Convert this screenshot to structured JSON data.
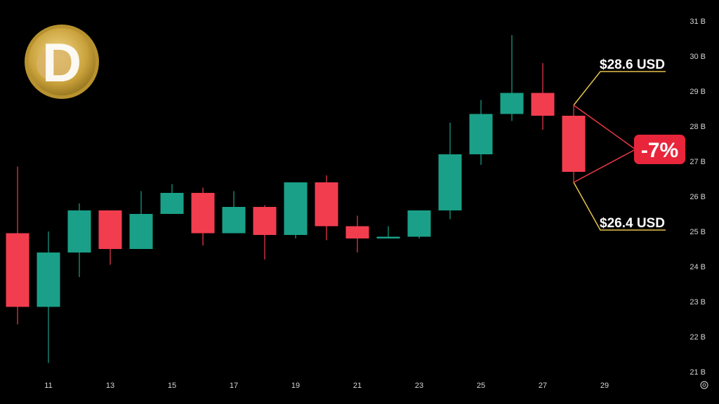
{
  "chart_data": {
    "type": "candlestick",
    "title": "",
    "xlabel": "",
    "ylabel": "",
    "y_unit": "B",
    "ylim": [
      21,
      31
    ],
    "y_ticks": [
      "21 B",
      "22 B",
      "23 B",
      "24 B",
      "25 B",
      "26 B",
      "27 B",
      "28 B",
      "29 B",
      "30 B",
      "31 B"
    ],
    "x_ticks": [
      "11",
      "13",
      "15",
      "17",
      "19",
      "21",
      "23",
      "25",
      "27",
      "29"
    ],
    "grid": false,
    "colors": {
      "up": "#1aa088",
      "down": "#f23d4f",
      "annotation_line": "#e6c34a",
      "annotation_diag": "#ea3943",
      "badge": "#e8253b"
    },
    "candles": [
      {
        "day": 10,
        "open": 24.95,
        "high": 26.85,
        "low": 22.35,
        "close": 22.85
      },
      {
        "day": 11,
        "open": 22.85,
        "high": 25.0,
        "low": 21.25,
        "close": 24.4
      },
      {
        "day": 12,
        "open": 24.4,
        "high": 25.8,
        "low": 23.7,
        "close": 25.6
      },
      {
        "day": 13,
        "open": 25.6,
        "high": 25.6,
        "low": 24.05,
        "close": 24.5
      },
      {
        "day": 14,
        "open": 24.5,
        "high": 26.15,
        "low": 24.5,
        "close": 25.5
      },
      {
        "day": 15,
        "open": 25.5,
        "high": 26.35,
        "low": 25.5,
        "close": 26.1
      },
      {
        "day": 16,
        "open": 26.1,
        "high": 26.25,
        "low": 24.6,
        "close": 24.95
      },
      {
        "day": 17,
        "open": 24.95,
        "high": 26.15,
        "low": 24.95,
        "close": 25.7
      },
      {
        "day": 18,
        "open": 25.7,
        "high": 25.75,
        "low": 24.2,
        "close": 24.9
      },
      {
        "day": 19,
        "open": 24.9,
        "high": 26.4,
        "low": 24.8,
        "close": 26.4
      },
      {
        "day": 20,
        "open": 26.4,
        "high": 26.6,
        "low": 24.75,
        "close": 25.15
      },
      {
        "day": 21,
        "open": 25.15,
        "high": 25.45,
        "low": 24.4,
        "close": 24.8
      },
      {
        "day": 22,
        "open": 24.8,
        "high": 25.15,
        "low": 24.8,
        "close": 24.85
      },
      {
        "day": 23,
        "open": 24.85,
        "high": 25.6,
        "low": 24.8,
        "close": 25.6
      },
      {
        "day": 24,
        "open": 25.6,
        "high": 28.1,
        "low": 25.35,
        "close": 27.2
      },
      {
        "day": 25,
        "open": 27.2,
        "high": 28.75,
        "low": 26.9,
        "close": 28.35
      },
      {
        "day": 26,
        "open": 28.35,
        "high": 30.6,
        "low": 28.15,
        "close": 28.95
      },
      {
        "day": 27,
        "open": 28.95,
        "high": 29.8,
        "low": 27.9,
        "close": 28.3
      },
      {
        "day": 28,
        "open": 28.3,
        "high": 28.6,
        "low": 26.4,
        "close": 26.7
      }
    ],
    "annotations": {
      "high_label": "$28.6 USD",
      "low_label": "$26.4 USD",
      "change_label": "-7%",
      "high_value": 28.6,
      "low_value": 26.4
    }
  },
  "logo": {
    "name": "dogecoin-logo",
    "letter": "D"
  },
  "settings_icon": "gear-icon"
}
